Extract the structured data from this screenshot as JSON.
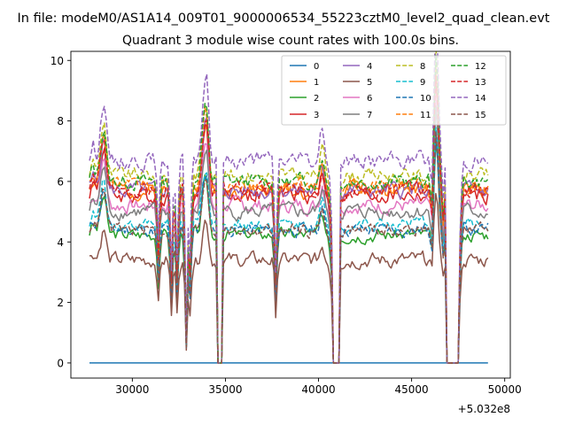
{
  "figure": {
    "suptitle": "In file: modeM0/AS1A14_009T01_9000006534_55223cztM0_level2_quad_clean.evt"
  },
  "chart_data": {
    "type": "line",
    "title": "Quadrant 3 module wise count rates with 100.0s bins.",
    "xlabel": "",
    "ylabel": "",
    "x_offset_label": "+5.032e8",
    "xlim": [
      26700,
      50300
    ],
    "ylim": [
      -0.5,
      10.3
    ],
    "xticks": [
      30000,
      35000,
      40000,
      45000,
      50000
    ],
    "xtick_labels": [
      "30000",
      "35000",
      "40000",
      "45000",
      "50000"
    ],
    "yticks": [
      0,
      2,
      4,
      6,
      8,
      10
    ],
    "ytick_labels": [
      "0",
      "2",
      "4",
      "6",
      "8",
      "10"
    ],
    "grid": false,
    "legend_placement": "top-right",
    "legend_columns": 4,
    "bin_seconds": 100,
    "x_start": 27700,
    "x_end": 49100,
    "gaps": [
      [
        34600,
        34800
      ],
      [
        40800,
        41100
      ],
      [
        46900,
        47500
      ]
    ],
    "common_features": [
      [
        28500,
        1.5
      ],
      [
        28300,
        0.7
      ],
      [
        34000,
        1.9
      ],
      [
        33800,
        1.3
      ],
      [
        40200,
        0.8
      ],
      [
        46350,
        2.4
      ],
      [
        46250,
        1.8
      ],
      [
        27900,
        0.4
      ]
    ],
    "dips": [
      [
        31400,
        0.6
      ],
      [
        32100,
        0.45
      ],
      [
        32400,
        0.5
      ],
      [
        32900,
        0.12
      ],
      [
        33100,
        0.5
      ],
      [
        37700,
        0.45
      ],
      [
        40700,
        0.7
      ],
      [
        46100,
        0.75
      ],
      [
        46700,
        0.8
      ],
      [
        47600,
        0.65
      ]
    ],
    "series": [
      {
        "name": "0",
        "color": "#1f77b4",
        "dash": "solid",
        "level": 0.0,
        "amp": 0.0,
        "seed": 1
      },
      {
        "name": "1",
        "color": "#ff7f0e",
        "dash": "solid",
        "level": 5.7,
        "amp": 0.5,
        "seed": 2
      },
      {
        "name": "2",
        "color": "#2ca02c",
        "dash": "solid",
        "level": 4.25,
        "amp": 0.4,
        "seed": 3
      },
      {
        "name": "3",
        "color": "#d62728",
        "dash": "solid",
        "level": 5.55,
        "amp": 0.5,
        "seed": 4
      },
      {
        "name": "4",
        "color": "#9467bd",
        "dash": "solid",
        "level": 5.7,
        "amp": 0.5,
        "seed": 5
      },
      {
        "name": "5",
        "color": "#8c564b",
        "dash": "solid",
        "level": 3.4,
        "amp": 0.45,
        "seed": 6
      },
      {
        "name": "6",
        "color": "#e377c2",
        "dash": "solid",
        "level": 5.2,
        "amp": 0.45,
        "seed": 7
      },
      {
        "name": "7",
        "color": "#7f7f7f",
        "dash": "solid",
        "level": 5.0,
        "amp": 0.45,
        "seed": 8
      },
      {
        "name": "8",
        "color": "#bcbd22",
        "dash": "dashed",
        "level": 6.2,
        "amp": 0.45,
        "seed": 9
      },
      {
        "name": "9",
        "color": "#17becf",
        "dash": "dashed",
        "level": 4.6,
        "amp": 0.4,
        "seed": 10
      },
      {
        "name": "10",
        "color": "#1f77b4",
        "dash": "dashed",
        "level": 4.4,
        "amp": 0.4,
        "seed": 11
      },
      {
        "name": "11",
        "color": "#ff7f0e",
        "dash": "dashed",
        "level": 5.85,
        "amp": 0.45,
        "seed": 12
      },
      {
        "name": "12",
        "color": "#2ca02c",
        "dash": "dashed",
        "level": 6.0,
        "amp": 0.45,
        "seed": 13
      },
      {
        "name": "13",
        "color": "#d62728",
        "dash": "dashed",
        "level": 5.7,
        "amp": 0.45,
        "seed": 14
      },
      {
        "name": "14",
        "color": "#9467bd",
        "dash": "dashed",
        "level": 6.7,
        "amp": 0.5,
        "seed": 15
      },
      {
        "name": "15",
        "color": "#8c564b",
        "dash": "dashed",
        "level": 4.4,
        "amp": 0.4,
        "seed": 16
      }
    ]
  }
}
